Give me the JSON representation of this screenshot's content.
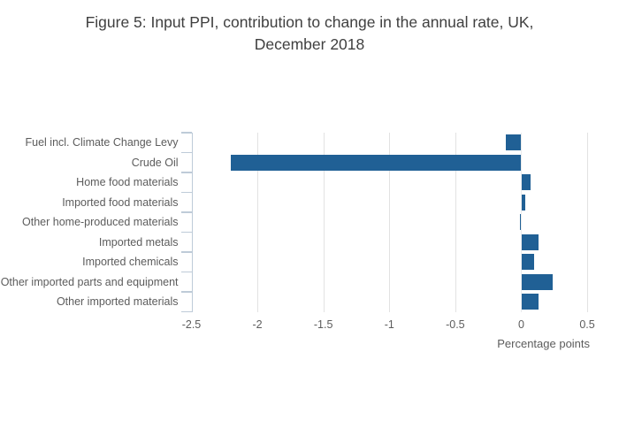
{
  "title": "Figure 5: Input PPI, contribution to change in the annual rate, UK, December 2018",
  "chart_data": {
    "type": "bar",
    "orientation": "horizontal",
    "title": "Figure 5: Input PPI, contribution to change in the annual rate, UK, December 2018",
    "categories": [
      "Fuel incl. Climate Change Levy",
      "Crude Oil",
      "Home food materials",
      "Imported food materials",
      "Other home-produced materials",
      "Imported metals",
      "Imported chemicals",
      "Other imported parts and equipment",
      "Other imported materials"
    ],
    "values": [
      -0.12,
      -2.2,
      0.07,
      0.03,
      -0.01,
      0.13,
      0.1,
      0.24,
      0.13
    ],
    "xlabel": "Percentage points",
    "ylabel": "",
    "xlim": [
      -2.5,
      0.55
    ],
    "xticks": [
      -2.5,
      -2,
      -1.5,
      -1,
      -0.5,
      0,
      0.5
    ],
    "xtick_labels": [
      "-2.5",
      "-2",
      "-1.5",
      "-1",
      "-0.5",
      "0",
      "0.5"
    ],
    "grid": true,
    "legend": false,
    "colors": {
      "bar": "#206095",
      "gridline": "#e2e2e2",
      "axis_line": "#becbd8",
      "zero_line": "#e9ebed",
      "title_text": "#404040",
      "label_text": "#5c5c5c"
    }
  }
}
